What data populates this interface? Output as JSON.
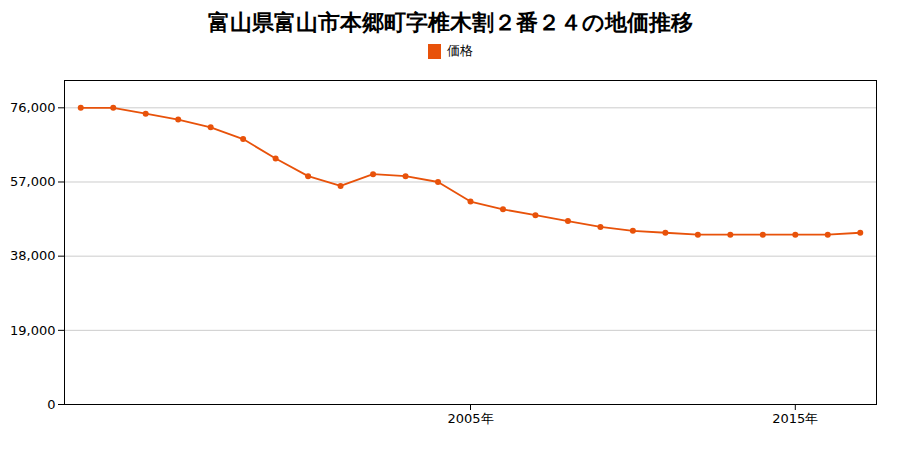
{
  "chart_data": {
    "type": "line",
    "title": "富山県富山市本郷町字椎木割２番２４の地価推移",
    "x": [
      1993,
      1994,
      1995,
      1996,
      1997,
      1998,
      1999,
      2000,
      2001,
      2002,
      2003,
      2004,
      2005,
      2006,
      2007,
      2008,
      2009,
      2010,
      2011,
      2012,
      2013,
      2014,
      2015,
      2016,
      2017
    ],
    "series": [
      {
        "name": "価格",
        "color": "#e8520a",
        "marker": "circle",
        "values": [
          76000,
          76000,
          74500,
          73000,
          71000,
          68000,
          63000,
          58500,
          56000,
          59000,
          58500,
          57000,
          52000,
          50000,
          48500,
          47000,
          45500,
          44500,
          44000,
          43500,
          43500,
          43500,
          43500,
          43500,
          44000
        ]
      }
    ],
    "xlim": [
      1992.5,
      2017.5
    ],
    "xticks": [
      {
        "value": 2005,
        "label": "2005年"
      },
      {
        "value": 2015,
        "label": "2015年"
      }
    ],
    "ylim": [
      0,
      83000
    ],
    "yticks": [
      0,
      {
        "value": 19000,
        "label": "19,000"
      },
      {
        "value": 38000,
        "label": "38,000"
      },
      {
        "value": 57000,
        "label": "57,000"
      },
      {
        "value": 76000,
        "label": "76,000"
      }
    ],
    "grid": true,
    "legend": "top"
  }
}
